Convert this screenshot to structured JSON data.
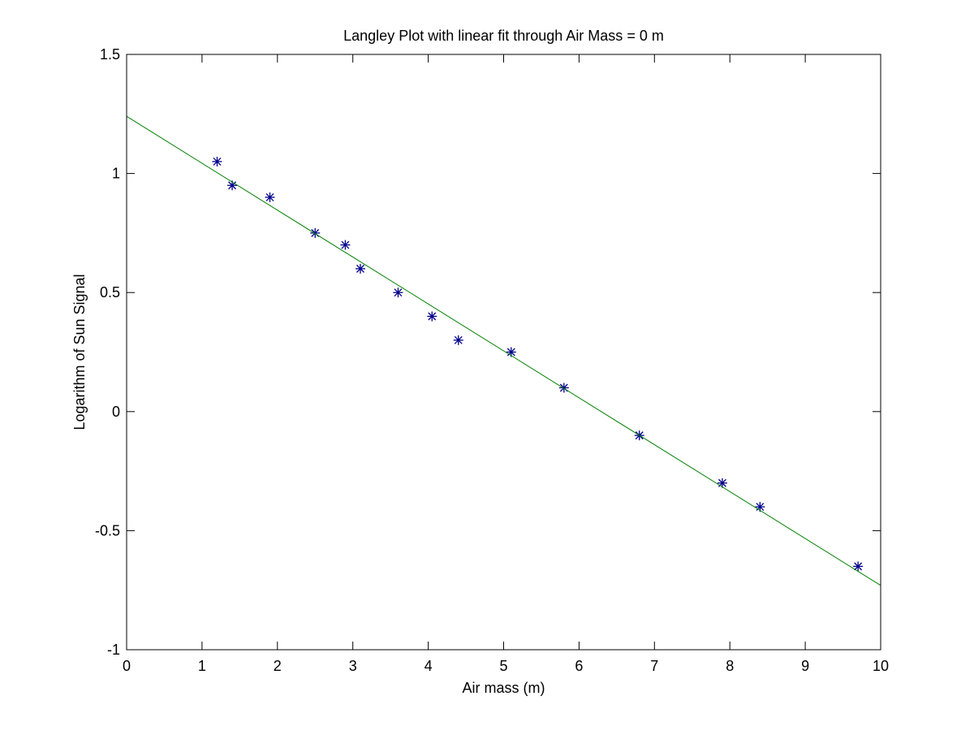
{
  "chart_data": {
    "type": "scatter",
    "title": "Langley Plot with linear fit through Air Mass = 0 m",
    "xlabel": "Air mass (m)",
    "ylabel": "Logarithm of Sun Signal",
    "xlim": [
      0,
      10
    ],
    "ylim": [
      -1,
      1.5
    ],
    "xticks": [
      0,
      1,
      2,
      3,
      4,
      5,
      6,
      7,
      8,
      9,
      10
    ],
    "yticks": [
      -1,
      -0.5,
      0,
      0.5,
      1,
      1.5
    ],
    "xtick_labels": [
      "0",
      "1",
      "2",
      "3",
      "4",
      "5",
      "6",
      "7",
      "8",
      "9",
      "10"
    ],
    "ytick_labels": [
      "-1",
      "-0.5",
      "0",
      "0.5",
      "1",
      "1.5"
    ],
    "grid": false,
    "series": [
      {
        "type": "scatter",
        "marker": "asterisk",
        "color": "#00008b",
        "x": [
          1.2,
          1.4,
          1.9,
          2.5,
          2.9,
          3.1,
          3.6,
          4.05,
          4.4,
          5.1,
          5.8,
          6.8,
          7.9,
          8.4,
          9.7
        ],
        "y": [
          1.05,
          0.95,
          0.9,
          0.75,
          0.7,
          0.6,
          0.5,
          0.4,
          0.3,
          0.25,
          0.1,
          -0.1,
          -0.3,
          -0.4,
          -0.65
        ]
      },
      {
        "type": "line",
        "color": "#008000",
        "x": [
          0,
          10
        ],
        "y": [
          1.24,
          -0.73
        ]
      }
    ]
  }
}
